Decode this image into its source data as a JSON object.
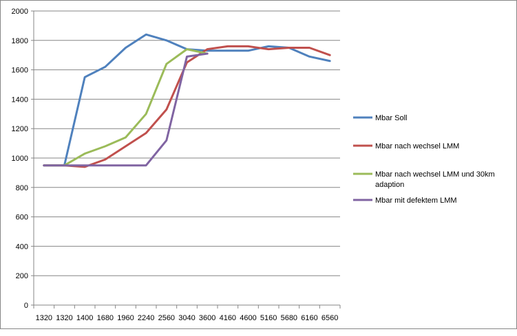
{
  "chart_data": {
    "type": "line",
    "categories": [
      "1320",
      "1320",
      "1400",
      "1680",
      "1960",
      "2240",
      "2560",
      "3040",
      "3600",
      "4160",
      "4600",
      "5160",
      "5680",
      "6160",
      "6560"
    ],
    "ylim": [
      0,
      2000
    ],
    "ytick_step": 200,
    "grid": "horizontal",
    "legend_position": "right",
    "series": [
      {
        "name": "Mbar Soll",
        "color": "#4F81BD",
        "values": [
          950,
          950,
          1550,
          1620,
          1750,
          1840,
          1800,
          1740,
          1730,
          1730,
          1730,
          1760,
          1750,
          1690,
          1660
        ]
      },
      {
        "name": "Mbar nach wechsel LMM",
        "color": "#C0504D",
        "values": [
          950,
          950,
          940,
          990,
          1080,
          1170,
          1330,
          1650,
          1740,
          1760,
          1760,
          1740,
          1750,
          1750,
          1700
        ]
      },
      {
        "name": "Mbar nach wechsel LMM und 30km adaption",
        "color": "#9BBB59",
        "values": [
          950,
          950,
          1030,
          1080,
          1140,
          1300,
          1640,
          1740,
          1710,
          null,
          null,
          null,
          null,
          null,
          null
        ]
      },
      {
        "name": "Mbar mit defektem LMM",
        "color": "#8064A2",
        "values": [
          950,
          950,
          950,
          950,
          950,
          950,
          1120,
          1690,
          1710,
          null,
          null,
          null,
          null,
          null,
          null
        ]
      }
    ]
  }
}
